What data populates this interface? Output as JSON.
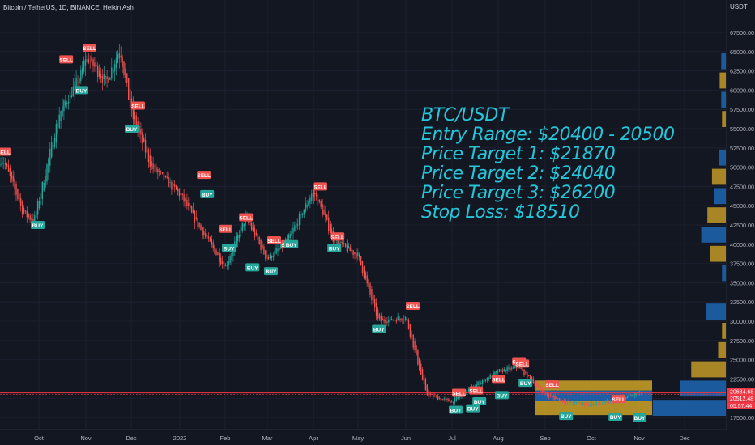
{
  "header": {
    "symbol_line": "Bitcoin / TetherUS, 1D, BINANCE, Heikin Ashi",
    "currency": "USDT"
  },
  "annotation": {
    "pair": "BTC/USDT",
    "entry": "Entry Range: $20400 - 20500",
    "target1": "Price Target 1: $21870",
    "target2": "Price Target 2: $24040",
    "target3": "Price Target 3: $26200",
    "stop": "Stop Loss: $18510"
  },
  "colors": {
    "background": "#131722",
    "up": "#26a69a",
    "down": "#ef5350",
    "buy_label": "#26a69a",
    "sell_label": "#ef5350",
    "annotation": "#26c6da",
    "price_line": "#f23645",
    "volume_profile_blue": "#1e66b4",
    "volume_profile_gold": "#c39a26"
  },
  "chart_data": {
    "type": "candlestick",
    "style": "Heikin Ashi",
    "y_axis_position": "right",
    "ylim": [
      16250,
      70000
    ],
    "y_ticks": [
      "17500.00",
      "20000.00",
      "22500.00",
      "25000.00",
      "27500.00",
      "30000.00",
      "32500.00",
      "35000.00",
      "37500.00",
      "40000.00",
      "42500.00",
      "45000.00",
      "47500.00",
      "50000.00",
      "52500.00",
      "55000.00",
      "57500.00",
      "60000.00",
      "62500.00",
      "65000.00",
      "67500.00"
    ],
    "x_ticks": [
      "Oct",
      "Nov",
      "Dec",
      "2022",
      "Feb",
      "Mar",
      "Apr",
      "May",
      "Jun",
      "Jul",
      "Aug",
      "Sep",
      "Oct",
      "Nov",
      "Dec"
    ],
    "price_path": [
      {
        "x": "Sep 2021",
        "close": 51000
      },
      {
        "x": "Sep 2021 (mid)",
        "close": 44000
      },
      {
        "x": "Oct 2021 (start)",
        "close": 43000
      },
      {
        "x": "Oct 2021 (mid)",
        "close": 57000
      },
      {
        "x": "Nov 2021 (start)",
        "close": 62000
      },
      {
        "x": "Nov 2021",
        "close": 64500
      },
      {
        "x": "Nov 2021 (mid)",
        "close": 61000
      },
      {
        "x": "Nov 2021 (late)",
        "close": 65500
      },
      {
        "x": "Dec 2021",
        "close": 57000
      },
      {
        "x": "Dec 2021 (mid)",
        "close": 50000
      },
      {
        "x": "2022",
        "close": 46500
      },
      {
        "x": "Jan 2022 (mid)",
        "close": 42000
      },
      {
        "x": "Feb 2022",
        "close": 37000
      },
      {
        "x": "Feb 2022 (mid)",
        "close": 43500
      },
      {
        "x": "Mar 2022",
        "close": 38000
      },
      {
        "x": "Mar 2022 (mid)",
        "close": 40500
      },
      {
        "x": "Apr 2022",
        "close": 47000
      },
      {
        "x": "Apr 2022 (mid)",
        "close": 40500
      },
      {
        "x": "May 2022",
        "close": 38500
      },
      {
        "x": "May 2022 (mid)",
        "close": 30000
      },
      {
        "x": "Jun 2022",
        "close": 30500
      },
      {
        "x": "Jun 2022 (mid)",
        "close": 20500
      },
      {
        "x": "Jul 2022",
        "close": 19500
      },
      {
        "x": "Jul 2022 (mid)",
        "close": 21500
      },
      {
        "x": "Aug 2022",
        "close": 23500
      },
      {
        "x": "Aug 2022 (mid)",
        "close": 24000
      },
      {
        "x": "Sep 2022",
        "close": 20500
      },
      {
        "x": "Sep 2022 (mid)",
        "close": 19500
      },
      {
        "x": "Oct 2022",
        "close": 19200
      },
      {
        "x": "Oct 2022 (mid)",
        "close": 19500
      },
      {
        "x": "Nov 2022",
        "close": 20700
      }
    ],
    "signals": [
      {
        "type": "SELL",
        "x": "Sep 2021",
        "price": 52000
      },
      {
        "type": "BUY",
        "x": "Oct 2021 (start)",
        "price": 42500
      },
      {
        "type": "SELL",
        "x": "Oct 2021 (mid)",
        "price": 64000
      },
      {
        "type": "BUY",
        "x": "Nov 2021 (start)",
        "price": 60000
      },
      {
        "type": "SELL",
        "x": "Nov 2021",
        "price": 65500
      },
      {
        "type": "SELL",
        "x": "Dec 2021",
        "price": 58000
      },
      {
        "type": "BUY",
        "x": "Dec 2021",
        "price": 55000
      },
      {
        "type": "SELL",
        "x": "Jan 2022 (mid)",
        "price": 49000
      },
      {
        "type": "BUY",
        "x": "Jan 2022 (mid)",
        "price": 46500
      },
      {
        "type": "SELL",
        "x": "Feb 2022",
        "price": 42000
      },
      {
        "type": "BUY",
        "x": "Feb 2022",
        "price": 39500
      },
      {
        "type": "BUY",
        "x": "Feb 2022 (mid)",
        "price": 37000
      },
      {
        "type": "SELL",
        "x": "Feb 2022 (mid)",
        "price": 43500
      },
      {
        "type": "BUY",
        "x": "Mar 2022",
        "price": 36500
      },
      {
        "type": "SELL",
        "x": "Mar 2022",
        "price": 40500
      },
      {
        "type": "SELL",
        "x": "Mar 2022 (mid)",
        "price": 40000
      },
      {
        "type": "BUY",
        "x": "Mar 2022 (mid)",
        "price": 40000
      },
      {
        "type": "SELL",
        "x": "Apr 2022",
        "price": 47500
      },
      {
        "type": "BUY",
        "x": "Apr 2022 (mid)",
        "price": 39500
      },
      {
        "type": "SELL",
        "x": "Apr 2022 (mid)",
        "price": 41000
      },
      {
        "type": "SELL",
        "x": "Jun 2022",
        "price": 32000
      },
      {
        "type": "BUY",
        "x": "May 2022 (mid)",
        "price": 29000
      },
      {
        "type": "BUY",
        "x": "Jul 2022",
        "price": 18500
      },
      {
        "type": "SELL",
        "x": "Jul 2022",
        "price": 20700
      },
      {
        "type": "BUY",
        "x": "Jul 2022 (mid)",
        "price": 18700
      },
      {
        "type": "SELL",
        "x": "Jul 2022 (mid)",
        "price": 21000
      },
      {
        "type": "BUY",
        "x": "Jul 2022 (mid)",
        "price": 19600
      },
      {
        "type": "SELL",
        "x": "Aug 2022",
        "price": 22500
      },
      {
        "type": "BUY",
        "x": "Aug 2022",
        "price": 20400
      },
      {
        "type": "BUY",
        "x": "Aug 2022 (mid)",
        "price": 22000
      },
      {
        "type": "SELL",
        "x": "Aug 2022 (mid)",
        "price": 24800
      },
      {
        "type": "SELL",
        "x": "Aug 2022 (mid)",
        "price": 24500
      },
      {
        "type": "SELL",
        "x": "Sep 2022",
        "price": 21800
      },
      {
        "type": "BUY",
        "x": "Sep 2022 (mid)",
        "price": 17700
      },
      {
        "type": "BUY",
        "x": "Oct 2022 (mid)",
        "price": 17600
      },
      {
        "type": "SELL",
        "x": "Oct 2022 (mid)",
        "price": 19900
      },
      {
        "type": "BUY",
        "x": "Nov 2022",
        "price": 17500
      }
    ],
    "price_labels": [
      "20684.68",
      "20512.48",
      "05:57:44"
    ],
    "current_price": 20684.68,
    "last_price": 20512.48,
    "volume_profile": [
      {
        "low": 17500,
        "high": 20000,
        "level": 0.95,
        "color": "blue"
      },
      {
        "low": 20000,
        "high": 22500,
        "level": 0.6,
        "color": "blue"
      },
      {
        "low": 22500,
        "high": 25000,
        "level": 0.45,
        "color": "gold"
      },
      {
        "low": 25000,
        "high": 27500,
        "level": 0.1,
        "color": "gold"
      },
      {
        "low": 27500,
        "high": 30000,
        "level": 0.05,
        "color": "gold"
      },
      {
        "low": 30000,
        "high": 32500,
        "level": 0.26,
        "color": "blue"
      },
      {
        "low": 35000,
        "high": 37500,
        "level": 0.05,
        "color": "blue"
      },
      {
        "low": 37500,
        "high": 40000,
        "level": 0.21,
        "color": "gold"
      },
      {
        "low": 40000,
        "high": 42500,
        "level": 0.32,
        "color": "blue"
      },
      {
        "low": 42500,
        "high": 45000,
        "level": 0.24,
        "color": "gold"
      },
      {
        "low": 45000,
        "high": 47500,
        "level": 0.15,
        "color": "blue"
      },
      {
        "low": 47500,
        "high": 50000,
        "level": 0.18,
        "color": "gold"
      },
      {
        "low": 50000,
        "high": 52500,
        "level": 0.09,
        "color": "blue"
      },
      {
        "low": 55000,
        "high": 57500,
        "level": 0.05,
        "color": "gold"
      },
      {
        "low": 57500,
        "high": 60000,
        "level": 0.06,
        "color": "blue"
      },
      {
        "low": 60000,
        "high": 62500,
        "level": 0.08,
        "color": "gold"
      },
      {
        "low": 62500,
        "high": 65000,
        "level": 0.06,
        "color": "blue"
      }
    ],
    "range_boxes": [
      {
        "from": "Sep 2022",
        "to": "Nov 2022",
        "top": 22300,
        "bottom": 21000,
        "color": "gold"
      },
      {
        "from": "Sep 2022",
        "to": "Nov 2022",
        "top": 21000,
        "bottom": 19700,
        "color": "blue"
      },
      {
        "from": "Sep 2022",
        "to": "Nov 2022",
        "top": 19700,
        "bottom": 17800,
        "color": "gold"
      }
    ],
    "grid": true,
    "legend": "none"
  }
}
